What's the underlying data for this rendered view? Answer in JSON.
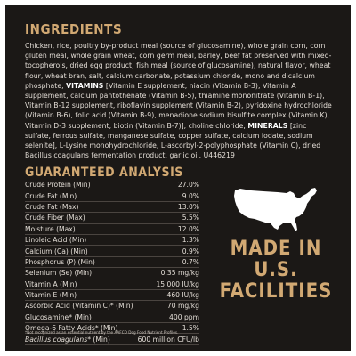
{
  "ingredients": {
    "title": "INGREDIENTS",
    "text_part1": "Chicken, rice, poultry by-product meal (source of glucosamine), whole grain corn, corn gluten meal, whole grain wheat, corn germ meal, barley, beef fat preserved with mixed-tocopherols, dried egg product, fish meal (source of glucosamine), natural flavor, wheat flour, wheat bran, salt, calcium carbonate, potassium chloride, mono and dicalcium phosphate, ",
    "vitamins_label": "VITAMINS",
    "text_part2": " [Vitamin E supplement, niacin (Vitamin B-3), Vitamin A supplement, calcium pantothenate (Vitamin B-5), thiamine mononitrate (Vitamin B-1), Vitamin B-12 supplement, riboflavin supplement (Vitamin B-2), pyridoxine hydrochloride (Vitamin B-6), folic acid (Vitamin B-9), menadione sodium bisulfite complex (Vitamin K), Vitamin D-3 supplement, biotin (Vitamin B-7)], choline chloride, ",
    "minerals_label": "MINERALS",
    "text_part3": " [zinc sulfate, ferrous sulfate, manganese sulfate, copper sulfate, calcium iodate, sodium selenite], L-Lysine monohydrochloride, L-ascorbyl-2-polyphosphate (Vitamin C), dried Bacillus coagulans fermentation product, garlic oil. U446219"
  },
  "guaranteed_analysis": {
    "title": "GUARANTEED ANALYSIS",
    "rows": [
      {
        "label": "Crude Protein (Min)",
        "value": "27.0%"
      },
      {
        "label": "Crude Fat (Min)",
        "value": "9.0%"
      },
      {
        "label": "Crude Fat (Max)",
        "value": "13.0%"
      },
      {
        "label": "Crude Fiber (Max)",
        "value": "5.5%"
      },
      {
        "label": "Moisture (Max)",
        "value": "12.0%"
      },
      {
        "label": "Linoleic Acid (Min)",
        "value": "1.3%"
      },
      {
        "label": "Calcium (Ca) (Min)",
        "value": "0.9%"
      },
      {
        "label": "Phosphorus (P) (Min)",
        "value": "0.7%"
      },
      {
        "label": "Selenium (Se) (Min)",
        "value": "0.35 mg/kg"
      },
      {
        "label": "Vitamin A (Min)",
        "value": "15,000 IU/kg"
      },
      {
        "label": "Vitamin E (Min)",
        "value": "460 IU/kg"
      },
      {
        "label": "Ascorbic Acid (Vitamin C)* (Min)",
        "value": "70 mg/kg"
      },
      {
        "label": "Glucosamine* (Min)",
        "value": "400 ppm"
      },
      {
        "label": "Omega-6 Fatty Acids* (Min)",
        "value": "1.5%"
      }
    ],
    "last_row": {
      "label_main": "Bacillus coagulans",
      "label_rest": "* (Min)",
      "value": "600 million CFU/lb"
    }
  },
  "footnote": "*Not recognized as an essential nutrient by the AAFCO Dog Food Nutrient Profiles.",
  "made_in": {
    "line1": "MADE IN",
    "line2": "U.S.",
    "line3": "FACILITIES"
  },
  "colors": {
    "panel_bg": "#1b1816",
    "accent": "#d2a973",
    "text": "#e3ddd6"
  },
  "icons": {
    "map": "usa-map-icon"
  }
}
